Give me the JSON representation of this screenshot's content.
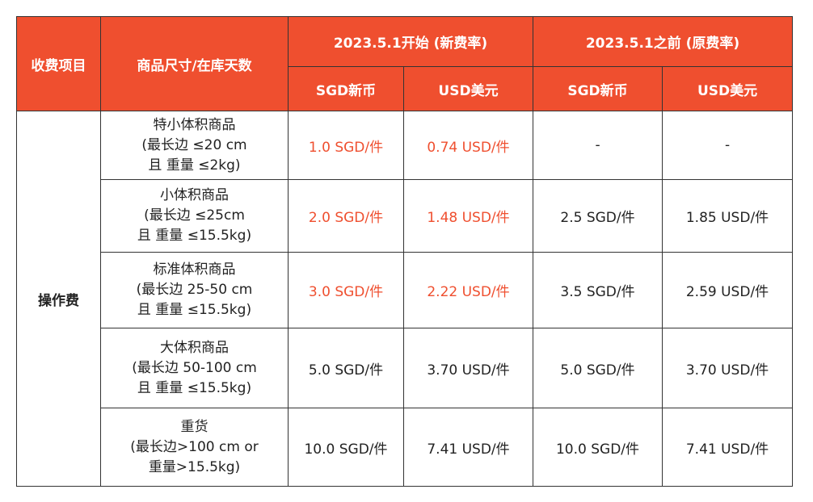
{
  "header": {
    "col_fee_item": "收费项目",
    "col_size_days": "商品尺寸/在库天数",
    "group_new": "2023.5.1开始 (新费率)",
    "group_old": "2023.5.1之前 (原费率)",
    "sgd": "SGD新币",
    "usd": "USD美元"
  },
  "category": "操作费",
  "rows": [
    {
      "size_lines": [
        "特小体积商品",
        "(最长边 ≤20 cm",
        "且 重量 ≤2kg)"
      ],
      "new_sgd": "1.0 SGD/件",
      "new_usd": "0.74 USD/件",
      "old_sgd": "-",
      "old_usd": "-"
    },
    {
      "size_lines": [
        "小体积商品",
        "(最长边 ≤25cm",
        "且 重量 ≤15.5kg)"
      ],
      "new_sgd": "2.0 SGD/件",
      "new_usd": "1.48 USD/件",
      "old_sgd": "2.5 SGD/件",
      "old_usd": "1.85 USD/件"
    },
    {
      "size_lines": [
        "标准体积商品",
        "(最长边 25-50 cm",
        "且 重量 ≤15.5kg)"
      ],
      "new_sgd": "3.0 SGD/件",
      "new_usd": "2.22 USD/件",
      "old_sgd": "3.5 SGD/件",
      "old_usd": "2.59 USD/件"
    },
    {
      "size_lines": [
        "大体积商品",
        "(最长边 50-100 cm",
        "且 重量 ≤15.5kg)"
      ],
      "new_sgd": "5.0 SGD/件",
      "new_usd": "3.70 USD/件",
      "old_sgd": "5.0 SGD/件",
      "old_usd": "3.70 USD/件"
    },
    {
      "size_lines": [
        "重货",
        "(最长边>100 cm or",
        "重量>15.5kg)"
      ],
      "new_sgd": "10.0 SGD/件",
      "new_usd": "7.41 USD/件",
      "old_sgd": "10.0 SGD/件",
      "old_usd": "7.41 USD/件"
    }
  ],
  "colors": {
    "header_bg": "#ef4f2f",
    "highlight_text": "#ef4f2f"
  }
}
